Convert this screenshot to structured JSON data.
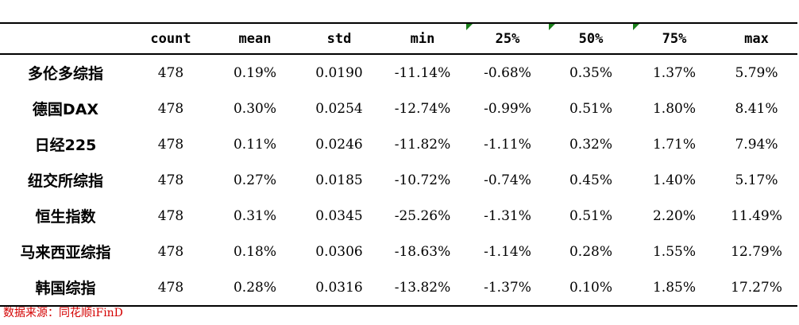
{
  "table": {
    "columns": [
      "count",
      "mean",
      "std",
      "min",
      "25%",
      "50%",
      "75%",
      "max"
    ],
    "rows": [
      {
        "label": "多伦多综指",
        "values": [
          "478",
          "0.19%",
          "0.0190",
          "-11.14%",
          "-0.68%",
          "0.35%",
          "1.37%",
          "5.79%"
        ]
      },
      {
        "label": "德国DAX",
        "values": [
          "478",
          "0.30%",
          "0.0254",
          "-12.74%",
          "-0.99%",
          "0.51%",
          "1.80%",
          "8.41%"
        ]
      },
      {
        "label": "日经225",
        "values": [
          "478",
          "0.11%",
          "0.0246",
          "-11.82%",
          "-1.11%",
          "0.32%",
          "1.71%",
          "7.94%"
        ]
      },
      {
        "label": "纽交所综指",
        "values": [
          "478",
          "0.27%",
          "0.0185",
          "-10.72%",
          "-0.74%",
          "0.45%",
          "1.40%",
          "5.17%"
        ]
      },
      {
        "label": "恒生指数",
        "values": [
          "478",
          "0.31%",
          "0.0345",
          "-25.26%",
          "-1.31%",
          "0.51%",
          "2.20%",
          "11.49%"
        ]
      },
      {
        "label": "马来西亚综指",
        "values": [
          "478",
          "0.18%",
          "0.0306",
          "-18.63%",
          "-1.14%",
          "0.28%",
          "1.55%",
          "12.79%"
        ]
      },
      {
        "label": "韩国综指",
        "values": [
          "478",
          "0.28%",
          "0.0316",
          "-13.82%",
          "-1.37%",
          "0.10%",
          "1.85%",
          "17.27%"
        ]
      }
    ]
  },
  "comment_marker_color": "#1a7f1a",
  "source_note": "数据来源：同花顺iFinD"
}
